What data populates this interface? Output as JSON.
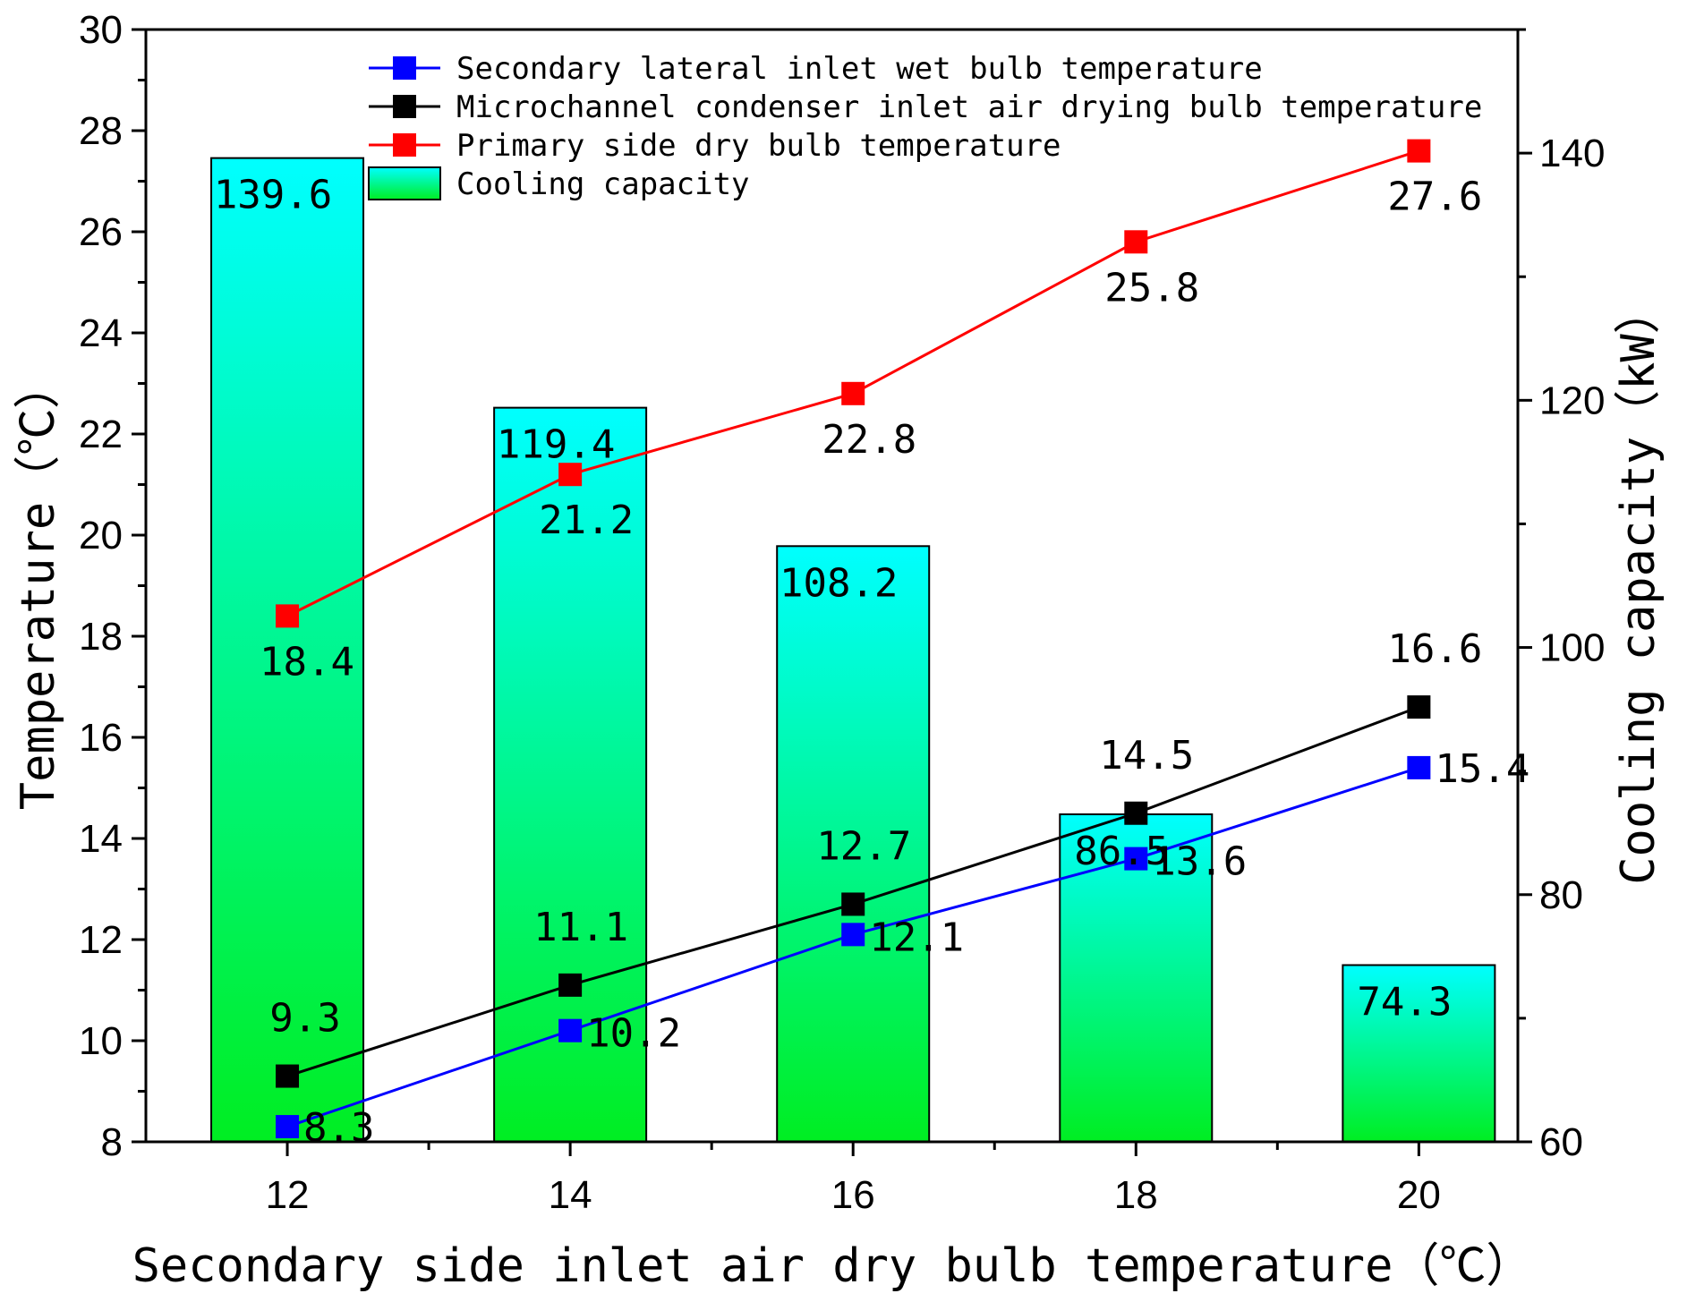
{
  "chart_data": {
    "type": "bar+line",
    "x": [
      12,
      14,
      16,
      18,
      20
    ],
    "xlabel": "Secondary side inlet air dry bulb temperature（℃）",
    "ylabel_left": "Temperature（℃）",
    "ylabel_right": "Cooling capacity（kW）",
    "ylim_left": [
      8,
      30
    ],
    "ylim_right": [
      60,
      150
    ],
    "xlim": [
      11,
      20.7
    ],
    "x_ticks": [
      "12",
      "14",
      "16",
      "18",
      "20"
    ],
    "y_left_ticks": [
      "8",
      "10",
      "12",
      "14",
      "16",
      "18",
      "20",
      "22",
      "24",
      "26",
      "28",
      "30"
    ],
    "y_right_ticks": [
      "60",
      "80",
      "100",
      "120",
      "140"
    ],
    "bars": {
      "name": "Cooling capacity",
      "axis": "right",
      "values": [
        139.6,
        119.4,
        108.2,
        86.5,
        74.3
      ],
      "labels": [
        "139.6",
        "119.4",
        "108.2",
        "86.5",
        "74.3"
      ],
      "color_top": "#00ffff",
      "color_bottom": "#00ee22"
    },
    "series": [
      {
        "name": "Secondary lateral inlet wet bulb temperature",
        "axis": "left",
        "color": "#0000ff",
        "values": [
          8.3,
          10.2,
          12.1,
          13.6,
          15.4
        ],
        "labels": [
          "8.3",
          "10.2",
          "12.1",
          "13.6",
          "15.4"
        ]
      },
      {
        "name": "Microchannel condenser inlet air drying bulb temperature",
        "axis": "left",
        "color": "#000000",
        "values": [
          9.3,
          11.1,
          12.7,
          14.5,
          16.6
        ],
        "labels": [
          "9.3",
          "11.1",
          "12.7",
          "14.5",
          "16.6"
        ]
      },
      {
        "name": "Primary side dry bulb temperature",
        "axis": "left",
        "color": "#ff0000",
        "values": [
          18.4,
          21.2,
          22.8,
          25.8,
          27.6
        ],
        "labels": [
          "18.4",
          "21.2",
          "22.8",
          "25.8",
          "27.6"
        ]
      }
    ],
    "legend": [
      "Secondary lateral inlet wet bulb temperature",
      "Microchannel condenser inlet air drying bulb temperature",
      "Primary side dry bulb temperature",
      "Cooling capacity"
    ],
    "legend_position": "top-center"
  }
}
